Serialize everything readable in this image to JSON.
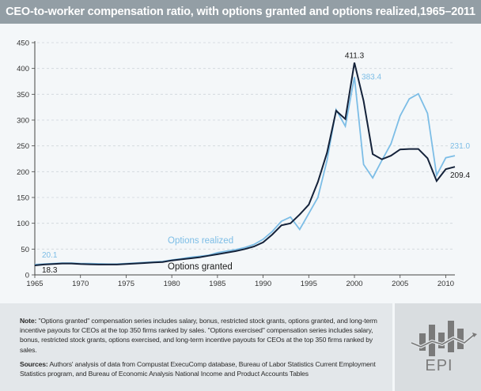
{
  "title": "CEO-to-worker compensation ratio, with options granted and options realized,1965–2011",
  "chart_data": {
    "type": "line",
    "title": "CEO-to-worker compensation ratio, with options granted and options realized,1965–2011",
    "xlabel": "",
    "ylabel": "",
    "xlim": [
      1965,
      2011
    ],
    "ylim": [
      0,
      450
    ],
    "yticks": [
      "0",
      "50",
      "100",
      "150",
      "200",
      "250",
      "300",
      "350",
      "400",
      "450"
    ],
    "xticks": [
      "1965",
      "1970",
      "1975",
      "1980",
      "1985",
      "1990",
      "1995",
      "2000",
      "2005",
      "2010"
    ],
    "grid": "horizontal dashed",
    "x": [
      1965,
      1966,
      1967,
      1968,
      1969,
      1970,
      1971,
      1972,
      1973,
      1974,
      1975,
      1976,
      1977,
      1978,
      1979,
      1980,
      1981,
      1982,
      1983,
      1984,
      1985,
      1986,
      1987,
      1988,
      1989,
      1990,
      1991,
      1992,
      1993,
      1994,
      1995,
      1996,
      1997,
      1998,
      1999,
      2000,
      2001,
      2002,
      2003,
      2004,
      2005,
      2006,
      2007,
      2008,
      2009,
      2010,
      2011
    ],
    "series": [
      {
        "name": "Options realized",
        "color": "#7cbde6",
        "values": [
          20.1,
          21,
          22,
          23,
          23,
          22,
          22,
          21.5,
          21,
          21,
          22,
          23,
          24,
          25,
          26,
          29,
          31,
          34,
          36,
          38,
          43,
          46,
          49,
          53,
          59,
          69,
          84,
          104,
          112,
          88,
          119,
          150,
          222,
          320,
          288,
          383.4,
          214,
          188,
          222,
          254,
          308,
          341,
          351,
          313,
          193,
          227,
          231.0
        ],
        "labels": {
          "1965": "20.1",
          "2000": "383.4",
          "2011": "231.0"
        },
        "legend_label": "Options realized"
      },
      {
        "name": "Options granted",
        "color": "#14223a",
        "values": [
          18.3,
          20,
          21,
          22,
          22,
          21,
          20.5,
          20,
          20,
          20,
          21,
          22,
          23,
          24,
          25,
          28,
          30,
          32,
          34,
          37,
          40,
          43,
          46,
          50,
          55,
          63,
          78,
          96,
          100,
          117,
          136,
          180,
          237,
          318,
          302,
          411.3,
          337,
          234,
          224,
          231,
          243,
          244,
          244,
          226,
          182,
          205,
          209.4
        ],
        "labels": {
          "1965": "18.3",
          "2000": "411.3",
          "2011": "209.4"
        },
        "legend_label": "Options granted"
      }
    ]
  },
  "footer": {
    "note_label": "Note:",
    "note_text": " \"Options granted\" compensation series includes salary, bonus, restricted stock grants, options granted, and long-term incentive payouts for CEOs at the top 350 firms ranked by sales. \"Options exercised\" compensation series includes salary, bonus, restricted stock grants, options exercised, and long-term incentive payouts for CEOs at the top 350 firms ranked by sales.",
    "sources_label": "Sources:",
    "sources_text": " Authors' analysis of data from Compustat ExecuComp database, Bureau of Labor Statistics Current Employment Statistics program, and Bureau of Economic Analysis National Income and Product Accounts Tables"
  },
  "logo": {
    "text": "EPI",
    "icon": "bar-line-chart-logo-icon",
    "colors": {
      "bars": "#7a7a7a",
      "line": "#7a7a7a"
    }
  },
  "colors": {
    "titlebar": "#939ea5",
    "background": "#f4f7f9",
    "footer": "#e3e7ea"
  }
}
